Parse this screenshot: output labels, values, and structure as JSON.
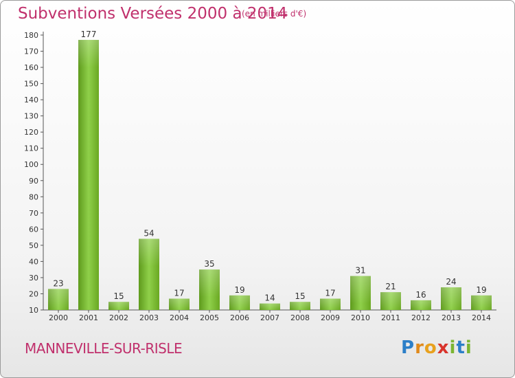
{
  "chart_data": {
    "type": "bar",
    "title": "Subventions Versées 2000 à 2014",
    "subtitle": "(en milliers d'€)",
    "categories": [
      "2000",
      "2001",
      "2002",
      "2003",
      "2004",
      "2005",
      "2006",
      "2007",
      "2008",
      "2009",
      "2010",
      "2011",
      "2012",
      "2013",
      "2014"
    ],
    "values": [
      23,
      177,
      15,
      54,
      17,
      35,
      19,
      14,
      15,
      17,
      31,
      21,
      16,
      24,
      19
    ],
    "ylim": [
      10,
      180
    ],
    "yticks": [
      10,
      20,
      30,
      40,
      50,
      60,
      70,
      80,
      90,
      100,
      110,
      120,
      130,
      140,
      150,
      160,
      170,
      180
    ],
    "grid": false,
    "bar_color": "#7ab833"
  },
  "footer": {
    "commune": "MANNEVILLE-SUR-RISLE",
    "logo_letters": [
      "P",
      "r",
      "o",
      "x",
      "i",
      "t",
      "i"
    ]
  }
}
